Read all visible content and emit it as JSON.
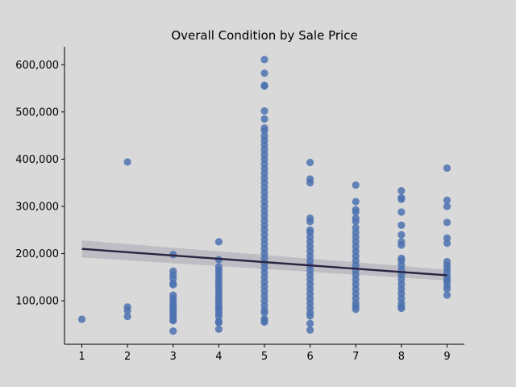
{
  "chart_data": {
    "type": "scatter",
    "title": "Overall Condition by Sale Price",
    "xlabel": "",
    "ylabel": "",
    "xlim": [
      0.62,
      9.38
    ],
    "ylim": [
      8000,
      638000
    ],
    "xticks": [
      1,
      2,
      3,
      4,
      5,
      6,
      7,
      8,
      9
    ],
    "xtick_labels": [
      "1",
      "2",
      "3",
      "4",
      "5",
      "6",
      "7",
      "8",
      "9"
    ],
    "yticks": [
      100000,
      200000,
      300000,
      400000,
      500000,
      600000
    ],
    "ytick_labels": [
      "100,000",
      "200,000",
      "300,000",
      "400,000",
      "500,000",
      "600,000"
    ],
    "grid": false,
    "point_color": "#4c72b0",
    "line_color": "#2a2340",
    "band_color": "#a6a6b0",
    "regression": {
      "x": [
        1,
        9
      ],
      "y": [
        210000,
        154000
      ],
      "ci_lower": [
        192000,
        143000
      ],
      "ci_upper": [
        228000,
        166000
      ]
    },
    "points": [
      {
        "x": 1,
        "y": [
          61000
        ]
      },
      {
        "x": 2,
        "y": [
          394000,
          87000,
          79000,
          67000
        ]
      },
      {
        "x": 3,
        "y": [
          198000,
          163000,
          155000,
          147000,
          137000,
          134000,
          112000,
          105000,
          98000,
          92000,
          87000,
          82000,
          77000,
          72000,
          66000,
          60000,
          58000,
          36000
        ]
      },
      {
        "x": 4,
        "y": [
          225000,
          187000,
          172000,
          165000,
          158000,
          150000,
          143000,
          136000,
          129000,
          122000,
          115000,
          108000,
          101000,
          95000,
          89000,
          84000,
          80000,
          73000,
          67000,
          56000,
          54000,
          40000
        ]
      },
      {
        "x": 5,
        "y": [
          611000,
          582000,
          556000,
          555000,
          502000,
          485000,
          466000,
          460000,
          449000,
          440000,
          430000,
          420000,
          410000,
          400000,
          390000,
          380000,
          370000,
          360000,
          350000,
          340000,
          330000,
          320000,
          310000,
          300000,
          290000,
          280000,
          270000,
          260000,
          250000,
          240000,
          230000,
          220000,
          210000,
          200000,
          190000,
          180000,
          170000,
          160000,
          150000,
          140000,
          130000,
          120000,
          110000,
          100000,
          90000,
          80000,
          75000,
          62000,
          58000,
          55000
        ]
      },
      {
        "x": 6,
        "y": [
          393000,
          358000,
          350000,
          275000,
          268000,
          250000,
          245000,
          235000,
          225000,
          215000,
          205000,
          195000,
          185000,
          175000,
          165000,
          155000,
          145000,
          135000,
          125000,
          115000,
          105000,
          95000,
          85000,
          75000,
          68000,
          52000,
          38000
        ]
      },
      {
        "x": 7,
        "y": [
          345000,
          310000,
          293000,
          288000,
          275000,
          268000,
          255000,
          245000,
          235000,
          225000,
          215000,
          205000,
          195000,
          185000,
          175000,
          165000,
          155000,
          145000,
          135000,
          125000,
          115000,
          105000,
          95000,
          88000,
          82000
        ]
      },
      {
        "x": 8,
        "y": [
          333000,
          318000,
          315000,
          288000,
          260000,
          240000,
          225000,
          218000,
          190000,
          185000,
          175000,
          165000,
          155000,
          145000,
          135000,
          125000,
          115000,
          105000,
          95000,
          88000,
          84000
        ]
      },
      {
        "x": 9,
        "y": [
          381000,
          313000,
          300000,
          266000,
          233000,
          222000,
          183000,
          175000,
          168000,
          160000,
          152000,
          145000,
          140000,
          132000,
          125000,
          112000
        ]
      }
    ]
  }
}
